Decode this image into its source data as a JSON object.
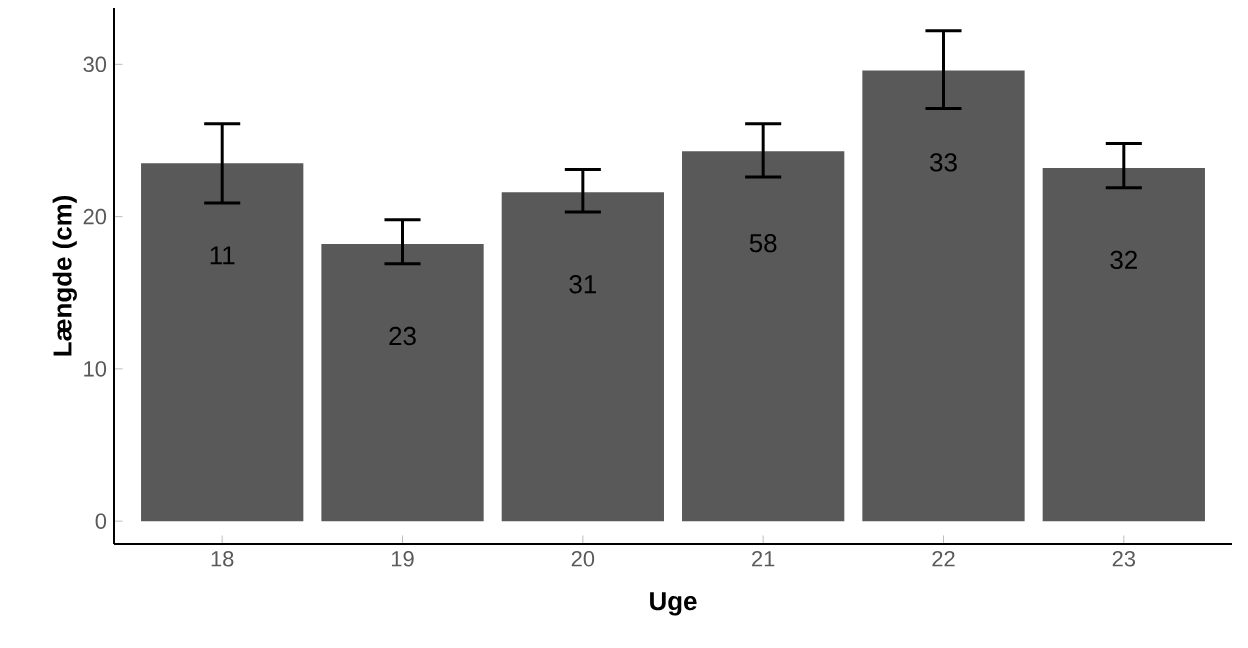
{
  "chart_data": {
    "type": "bar",
    "xlabel": "Uge",
    "ylabel": "Længde (cm)",
    "categories": [
      "18",
      "19",
      "20",
      "21",
      "22",
      "23"
    ],
    "values": [
      23.5,
      18.2,
      21.6,
      24.3,
      29.6,
      23.2
    ],
    "errors": [
      [
        20.9,
        26.1
      ],
      [
        16.9,
        19.8
      ],
      [
        20.3,
        23.1
      ],
      [
        22.6,
        26.1
      ],
      [
        27.1,
        32.2
      ],
      [
        21.9,
        24.8
      ]
    ],
    "annotations": [
      "11",
      "23",
      "31",
      "58",
      "33",
      "32"
    ],
    "color": "#595959",
    "ylim": [
      -1.5,
      33.7
    ],
    "yticks": [
      0,
      10,
      20,
      30
    ],
    "grid": false
  }
}
